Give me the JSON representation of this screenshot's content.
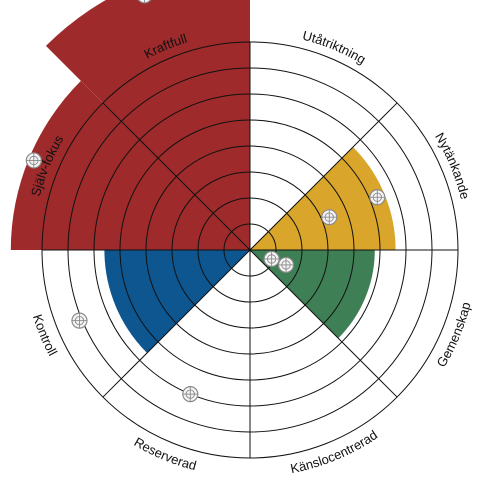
{
  "chart_data": {
    "type": "polar-area",
    "title": "",
    "ring_count": 8,
    "r_max": 8,
    "grid": true,
    "sectors": [
      {
        "label": "Utåtriktning",
        "value": 0,
        "color": null
      },
      {
        "label": "Nytänkande",
        "value": 5.6,
        "color": "#d9a52b"
      },
      {
        "label": "Gemenskap",
        "value": 4.8,
        "color": "#3f7f55"
      },
      {
        "label": "Känslocentrerad",
        "value": 0,
        "color": null
      },
      {
        "label": "Reserverad",
        "value": 0,
        "color": null
      },
      {
        "label": "Kontroll",
        "value": 5.6,
        "color": "#0d5690"
      },
      {
        "label": "Själv-fokus",
        "value": 9.2,
        "color": "#9e2a2b"
      },
      {
        "label": "Kraftfull",
        "value": 11.1,
        "color": "#9e2a2b"
      }
    ],
    "markers": [
      {
        "sector": "Kraftfull",
        "value": 10.6
      },
      {
        "sector": "Själv-fokus",
        "value": 9.0
      },
      {
        "sector": "Nytänkande",
        "value": 5.3
      },
      {
        "sector": "Nytänkande",
        "value": 3.3
      },
      {
        "sector": "Gemenskap",
        "value": 1.5
      },
      {
        "sector": "Gemenskap",
        "value": 0.9
      },
      {
        "sector": "Kontroll",
        "value": 7.1
      },
      {
        "sector": "Reserverad",
        "value": 6.0
      }
    ],
    "colors": {
      "grid_line": "#111111",
      "marker_fill": "#f4f4f4",
      "marker_stroke": "#8a8a8a"
    }
  }
}
